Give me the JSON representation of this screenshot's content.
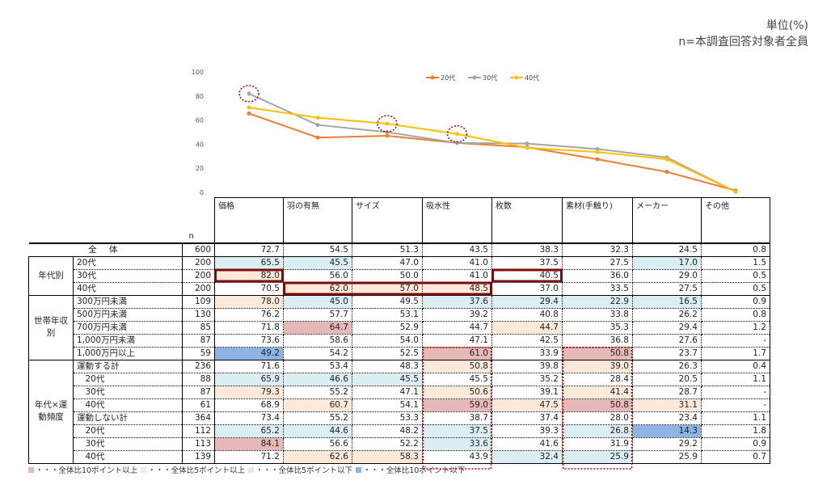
{
  "header": {
    "unit": "単位(%)",
    "base": "n=本調査回答対象者全員"
  },
  "chart_data": {
    "type": "line",
    "categories": [
      "価格",
      "羽の有無",
      "サイズ",
      "吸水性",
      "枚数",
      "素材(手触り)",
      "メーカー",
      "その他"
    ],
    "ylim": [
      0,
      100
    ],
    "yticks": [
      0,
      20,
      40,
      60,
      80,
      100
    ],
    "legend_position": "top",
    "series": [
      {
        "name": "20代",
        "color": "#ed7d31",
        "values": [
          65.5,
          45.5,
          47.0,
          41.0,
          37.5,
          27.5,
          17.0,
          1.5
        ]
      },
      {
        "name": "30代",
        "color": "#a5a5a5",
        "values": [
          82.0,
          56.0,
          50.0,
          41.0,
          40.5,
          36.0,
          29.0,
          0.5
        ]
      },
      {
        "name": "40代",
        "color": "#ffc000",
        "values": [
          70.5,
          62.0,
          57.0,
          48.5,
          37.0,
          33.5,
          27.5,
          0.5
        ]
      }
    ],
    "highlight_circles": [
      {
        "series": 1,
        "index": 0
      },
      {
        "series": 2,
        "index": 2
      },
      {
        "series": 2,
        "index": 3
      }
    ]
  },
  "table": {
    "n_label": "n",
    "columns": [
      "価格",
      "羽の有無",
      "サイズ",
      "吸水性",
      "枚数",
      "素材(手触り)",
      "メーカー",
      "その他"
    ],
    "total": {
      "label": "全 体",
      "n": "600",
      "values": [
        "72.7",
        "54.5",
        "51.3",
        "43.5",
        "38.3",
        "32.3",
        "24.5",
        "0.8"
      ]
    },
    "groups": [
      {
        "label": "年代別",
        "rows": [
          {
            "label": "20代",
            "n": "200",
            "values": [
              "65.5",
              "45.5",
              "47.0",
              "41.0",
              "37.5",
              "27.5",
              "17.0",
              "1.5"
            ],
            "shade": [
              "b",
              "b",
              "",
              "",
              "",
              "",
              "b",
              ""
            ]
          },
          {
            "label": "30代",
            "n": "200",
            "values": [
              "82.0",
              "56.0",
              "50.0",
              "41.0",
              "40.5",
              "36.0",
              "29.0",
              "0.5"
            ],
            "shade": [
              "o",
              "",
              "",
              "",
              "",
              "",
              "",
              ""
            ]
          },
          {
            "label": "40代",
            "n": "200",
            "values": [
              "70.5",
              "62.0",
              "57.0",
              "48.5",
              "37.0",
              "33.5",
              "27.5",
              "0.5"
            ],
            "shade": [
              "",
              "o",
              "o",
              "o",
              "",
              "",
              "",
              ""
            ]
          }
        ]
      },
      {
        "label": "世帯年収別",
        "rows": [
          {
            "label": "300万円未満",
            "n": "109",
            "values": [
              "78.0",
              "45.0",
              "49.5",
              "37.6",
              "29.4",
              "22.9",
              "16.5",
              "0.9"
            ],
            "shade": [
              "o",
              "b",
              "",
              "b",
              "b",
              "b",
              "b",
              ""
            ]
          },
          {
            "label": "500万円未満",
            "n": "130",
            "values": [
              "76.2",
              "57.7",
              "53.1",
              "39.2",
              "40.8",
              "33.8",
              "26.2",
              "0.8"
            ],
            "shade": [
              "",
              "",
              "",
              "",
              "",
              "",
              "",
              ""
            ]
          },
          {
            "label": "700万円未満",
            "n": "85",
            "values": [
              "71.8",
              "64.7",
              "52.9",
              "44.7",
              "44.7",
              "35.3",
              "29.4",
              "1.2"
            ],
            "shade": [
              "",
              "p",
              "",
              "",
              "o",
              "",
              "",
              ""
            ]
          },
          {
            "label": "1,000万円未満",
            "n": "87",
            "values": [
              "73.6",
              "58.6",
              "54.0",
              "47.1",
              "42.5",
              "36.8",
              "27.6",
              "-"
            ],
            "shade": [
              "",
              "",
              "",
              "",
              "",
              "",
              "",
              ""
            ]
          },
          {
            "label": "1,000万円以上",
            "n": "59",
            "values": [
              "49.2",
              "54.2",
              "52.5",
              "61.0",
              "33.9",
              "50.8",
              "23.7",
              "1.7"
            ],
            "shade": [
              "B",
              "",
              "",
              "p",
              "",
              "p",
              "",
              ""
            ]
          }
        ]
      },
      {
        "label": "年代×運動頻度",
        "rows": [
          {
            "label": "運動する計",
            "n": "236",
            "values": [
              "71.6",
              "53.4",
              "48.3",
              "50.8",
              "39.8",
              "39.0",
              "26.3",
              "0.4"
            ],
            "shade": [
              "",
              "",
              "",
              "o",
              "",
              "o",
              "",
              ""
            ]
          },
          {
            "label": "　20代",
            "n": "88",
            "values": [
              "65.9",
              "46.6",
              "45.5",
              "45.5",
              "35.2",
              "28.4",
              "20.5",
              "1.1"
            ],
            "shade": [
              "b",
              "b",
              "b",
              "",
              "",
              "",
              "",
              ""
            ]
          },
          {
            "label": "　30代",
            "n": "87",
            "values": [
              "79.3",
              "55.2",
              "47.1",
              "50.6",
              "39.1",
              "41.4",
              "28.7",
              "-"
            ],
            "shade": [
              "o",
              "",
              "",
              "o",
              "",
              "o",
              "",
              ""
            ]
          },
          {
            "label": "　40代",
            "n": "61",
            "values": [
              "68.9",
              "60.7",
              "54.1",
              "59.0",
              "47.5",
              "50.8",
              "31.1",
              "-"
            ],
            "shade": [
              "",
              "o",
              "",
              "p",
              "o",
              "p",
              "o",
              ""
            ]
          },
          {
            "label": "運動しない計",
            "n": "364",
            "values": [
              "73.4",
              "55.2",
              "53.3",
              "38.7",
              "37.4",
              "28.0",
              "23.4",
              "1.1"
            ],
            "shade": [
              "",
              "",
              "",
              "",
              "",
              "",
              "",
              ""
            ]
          },
          {
            "label": "　20代",
            "n": "112",
            "values": [
              "65.2",
              "44.6",
              "48.2",
              "37.5",
              "39.3",
              "26.8",
              "14.3",
              "1.8"
            ],
            "shade": [
              "b",
              "b",
              "",
              "b",
              "",
              "b",
              "B",
              ""
            ]
          },
          {
            "label": "　30代",
            "n": "113",
            "values": [
              "84.1",
              "56.6",
              "52.2",
              "33.6",
              "41.6",
              "31.9",
              "29.2",
              "0.9"
            ],
            "shade": [
              "p",
              "",
              "",
              "b",
              "",
              "",
              "",
              ""
            ]
          },
          {
            "label": "　40代",
            "n": "139",
            "values": [
              "71.2",
              "62.6",
              "58.3",
              "43.9",
              "32.4",
              "25.9",
              "25.9",
              "0.7"
            ],
            "shade": [
              "",
              "o",
              "o",
              "",
              "b",
              "b",
              "",
              ""
            ]
          }
        ]
      }
    ],
    "solid_boxes": [
      {
        "row": 2,
        "col_from": 0,
        "col_to": 0
      },
      {
        "row": 3,
        "col_from": 1,
        "col_to": 3
      },
      {
        "row": 2,
        "col_from": 4,
        "col_to": 4
      }
    ],
    "dotted_boxes": [
      {
        "row_from": 8,
        "row_to": 16,
        "col": 3
      },
      {
        "row_from": 8,
        "row_to": 16,
        "col": 5
      }
    ]
  },
  "legend": [
    {
      "code": "p",
      "color": "#e6b8b7",
      "text": "・・・全体比10ポイント以上"
    },
    {
      "code": "o",
      "color": "#fde9d9",
      "text": "・・・全体比5ポイント以上"
    },
    {
      "code": "b",
      "color": "#daeef3",
      "text": "・・・全体比5ポイント以下"
    },
    {
      "code": "B",
      "color": "#8db4e2",
      "text": "・・・全体比10ポイント以下"
    }
  ]
}
